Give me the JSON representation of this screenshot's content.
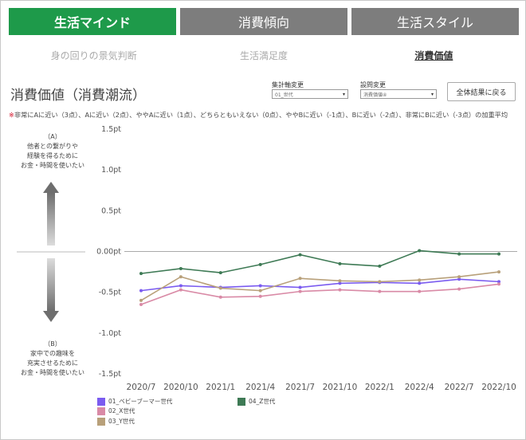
{
  "tabs": [
    {
      "label": "生活マインド",
      "active": true
    },
    {
      "label": "消費傾向",
      "active": false
    },
    {
      "label": "生活スタイル",
      "active": false
    }
  ],
  "subtabs": [
    {
      "label": "身の回りの景気判断",
      "active": false
    },
    {
      "label": "生活満足度",
      "active": false
    },
    {
      "label": "消費価値",
      "active": true
    }
  ],
  "page_title": "消費価値（消費潮流）",
  "controls": {
    "axis_label": "集計軸変更",
    "axis_value": "01_世代",
    "question_label": "設問変更",
    "question_value": "消費価値④",
    "reset_label": "全体結果に戻る"
  },
  "note": {
    "mark": "※",
    "text": "非常にAに近い（3点）、Aに近い（2点）、ややAに近い（1点）、どちらともいえない（0点）、ややBに近い（-1点）、Bに近い（-2点）、非常にBに近い（-3点）の加重平均"
  },
  "side": {
    "a_label": "（A）",
    "a_lines": [
      "他者との繋がりや",
      "経験を得るために",
      "お金・時間を使いたい"
    ],
    "b_label": "（B）",
    "b_lines": [
      "家中での趣味を",
      "充実させるために",
      "お金・時間を使いたい"
    ]
  },
  "colors": {
    "tab_active": "#1e9a4a",
    "tab_inactive": "#7d7d7d"
  },
  "chart_data": {
    "type": "line",
    "x": [
      "2020/7",
      "2020/10",
      "2021/1",
      "2021/4",
      "2021/7",
      "2021/10",
      "2022/1",
      "2022/4",
      "2022/7",
      "2022/10"
    ],
    "ylim": [
      -1.5,
      1.5
    ],
    "yticks": [
      1.5,
      1.0,
      0.5,
      0.0,
      -0.5,
      -1.0,
      -1.5
    ],
    "ytick_labels": [
      "1.5pt",
      "1.0pt",
      "0.5pt",
      "0.00pt",
      "-0.5pt",
      "-1.0pt",
      "-1.5pt"
    ],
    "grid": false,
    "legend_position": "bottom",
    "series": [
      {
        "name": "01_ベビーブーマー世代",
        "color": "#7b5cf0",
        "values": [
          -0.48,
          -0.42,
          -0.44,
          -0.42,
          -0.44,
          -0.39,
          -0.38,
          -0.39,
          -0.34,
          -0.37
        ]
      },
      {
        "name": "02_X世代",
        "color": "#d98aa6",
        "values": [
          -0.65,
          -0.47,
          -0.56,
          -0.55,
          -0.49,
          -0.47,
          -0.49,
          -0.49,
          -0.46,
          -0.4
        ]
      },
      {
        "name": "03_Y世代",
        "color": "#b8a07a",
        "values": [
          -0.6,
          -0.31,
          -0.45,
          -0.48,
          -0.33,
          -0.36,
          -0.37,
          -0.35,
          -0.31,
          -0.25
        ]
      },
      {
        "name": "04_Z世代",
        "color": "#3e7a55",
        "values": [
          -0.27,
          -0.21,
          -0.26,
          -0.16,
          -0.04,
          -0.15,
          -0.18,
          0.01,
          -0.03,
          -0.03
        ]
      }
    ]
  }
}
